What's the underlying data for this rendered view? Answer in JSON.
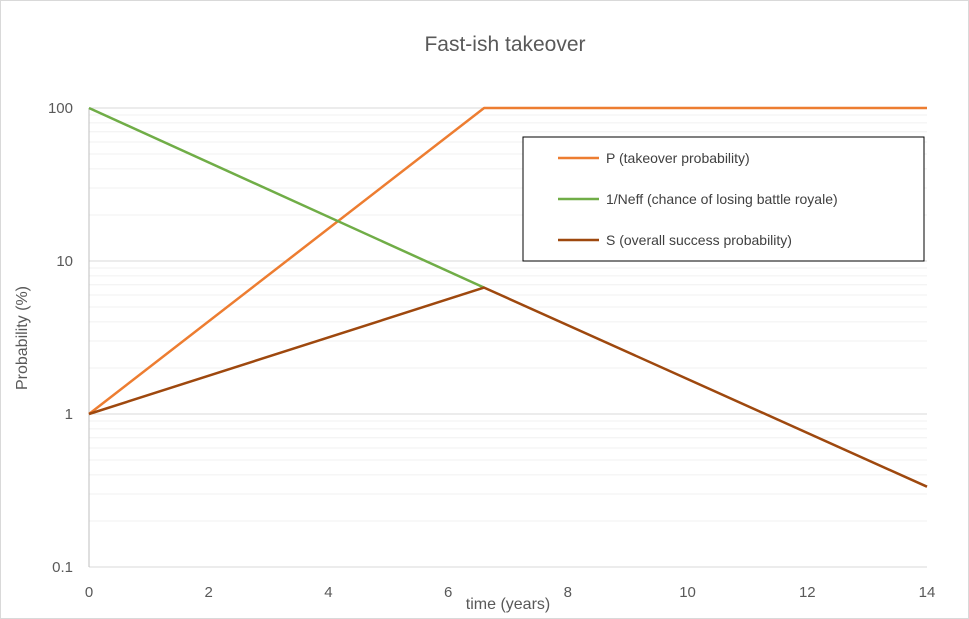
{
  "chart_data": {
    "type": "line",
    "title": "Fast-ish takeover",
    "xlabel": "time (years)",
    "ylabel": "Probability (%)",
    "xlim": [
      0,
      14
    ],
    "ylim": [
      0.1,
      100
    ],
    "yscale": "log",
    "grid": true,
    "legend_position": "top-right",
    "x_ticks": [
      "0",
      "2",
      "4",
      "6",
      "8",
      "10",
      "12",
      "14"
    ],
    "y_ticks": [
      "0.1",
      "1",
      "10",
      "100"
    ],
    "series": [
      {
        "name": "P (takeover probability)",
        "color": "#ed7d31",
        "points": [
          [
            0,
            1
          ],
          [
            6.6,
            100
          ],
          [
            14,
            100
          ]
        ]
      },
      {
        "name": "1/Neff (chance of losing battle royale)",
        "color": "#70ad47",
        "points": [
          [
            0,
            100
          ],
          [
            6.6,
            6.7
          ]
        ]
      },
      {
        "name": "S (overall success probability)",
        "color": "#9e480e",
        "points": [
          [
            0,
            1
          ],
          [
            6.6,
            6.7
          ],
          [
            14,
            0.335
          ]
        ]
      }
    ]
  }
}
